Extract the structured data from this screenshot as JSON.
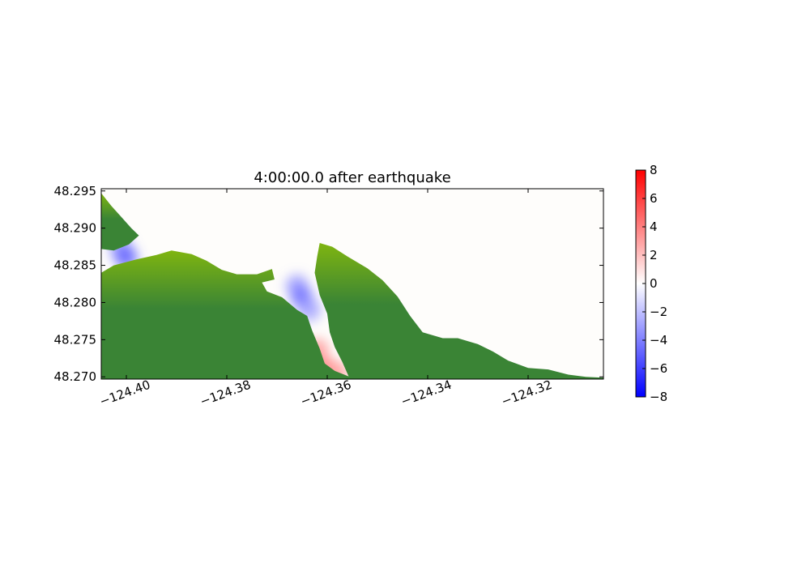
{
  "chart_data": {
    "type": "heatmap",
    "title": "4:00:00.0 after earthquake",
    "xlabel": "",
    "ylabel": "",
    "xlim": [
      -124.405,
      -124.305
    ],
    "ylim": [
      48.2697,
      48.2953
    ],
    "x_ticks": [
      -124.4,
      -124.38,
      -124.36,
      -124.34,
      -124.32
    ],
    "x_tick_labels": [
      "−124.40",
      "−124.38",
      "−124.36",
      "−124.34",
      "−124.32"
    ],
    "y_ticks": [
      48.295,
      48.29,
      48.285,
      48.28,
      48.275,
      48.27
    ],
    "y_tick_labels": [
      "48.295",
      "48.290",
      "48.285",
      "48.280",
      "48.275",
      "48.270"
    ],
    "grid": false,
    "colorbar": {
      "colormap": "bwr",
      "range": [
        -8,
        8
      ],
      "ticks": [
        8,
        6,
        4,
        2,
        0,
        -2,
        -4,
        -6,
        -8
      ],
      "tick_labels": [
        "8",
        "6",
        "4",
        "2",
        "0",
        "−2",
        "−4",
        "−6",
        "−8"
      ],
      "colors": {
        "high": "#ff0000",
        "mid": "#ffffff",
        "low": "#0000ff"
      }
    },
    "land": {
      "colors": {
        "low": "#3a8435",
        "high": "#7fb510"
      },
      "regions": [
        {
          "name": "west",
          "boundary": [
            [
              -124.405,
              48.2697
            ],
            [
              -124.405,
              48.284
            ],
            [
              -124.4025,
              48.285
            ],
            [
              -124.398,
              48.2858
            ],
            [
              -124.394,
              48.2864
            ],
            [
              -124.391,
              48.287
            ],
            [
              -124.387,
              48.2865
            ],
            [
              -124.384,
              48.2856
            ],
            [
              -124.381,
              48.2844
            ],
            [
              -124.378,
              48.2838
            ],
            [
              -124.374,
              48.2838
            ],
            [
              -124.371,
              48.2845
            ],
            [
              -124.3705,
              48.2831
            ],
            [
              -124.373,
              48.2827
            ],
            [
              -124.372,
              48.2815
            ],
            [
              -124.369,
              48.2807
            ],
            [
              -124.366,
              48.279
            ],
            [
              -124.364,
              48.2782
            ],
            [
              -124.363,
              48.2762
            ],
            [
              -124.3615,
              48.2738
            ],
            [
              -124.3605,
              48.2718
            ],
            [
              -124.3585,
              48.2708
            ],
            [
              -124.3555,
              48.27
            ],
            [
              -124.3555,
              48.2697
            ]
          ]
        },
        {
          "name": "north-tip",
          "boundary": [
            [
              -124.405,
              48.2947
            ],
            [
              -124.403,
              48.293
            ],
            [
              -124.401,
              48.2915
            ],
            [
              -124.399,
              48.29
            ],
            [
              -124.3975,
              48.289
            ],
            [
              -124.3995,
              48.2878
            ],
            [
              -124.4025,
              48.287
            ],
            [
              -124.405,
              48.2872
            ]
          ]
        },
        {
          "name": "east",
          "boundary": [
            [
              -124.3615,
              48.288
            ],
            [
              -124.359,
              48.2875
            ],
            [
              -124.356,
              48.2862
            ],
            [
              -124.352,
              48.2846
            ],
            [
              -124.349,
              48.283
            ],
            [
              -124.346,
              48.2808
            ],
            [
              -124.3435,
              48.2782
            ],
            [
              -124.341,
              48.276
            ],
            [
              -124.337,
              48.2752
            ],
            [
              -124.334,
              48.2752
            ],
            [
              -124.33,
              48.2744
            ],
            [
              -124.327,
              48.2734
            ],
            [
              -124.324,
              48.2722
            ],
            [
              -124.32,
              48.2712
            ],
            [
              -124.316,
              48.271
            ],
            [
              -124.312,
              48.2703
            ],
            [
              -124.3085,
              48.27
            ],
            [
              -124.305,
              48.2699
            ],
            [
              -124.305,
              48.2697
            ],
            [
              -124.3555,
              48.2697
            ],
            [
              -124.357,
              48.272
            ],
            [
              -124.3585,
              48.274
            ],
            [
              -124.3595,
              48.276
            ],
            [
              -124.36,
              48.2785
            ],
            [
              -124.3615,
              48.281
            ],
            [
              -124.3625,
              48.284
            ],
            [
              -124.362,
              48.2862
            ]
          ]
        }
      ]
    },
    "water_anomalies": [
      {
        "lon": -124.401,
        "lat": 48.2872,
        "value": -1.0
      },
      {
        "lon": -124.4,
        "lat": 48.286,
        "value": -1.3
      },
      {
        "lon": -124.366,
        "lat": 48.2822,
        "value": -0.9
      },
      {
        "lon": -124.365,
        "lat": 48.2806,
        "value": -1.2
      },
      {
        "lon": -124.3635,
        "lat": 48.279,
        "value": -0.8
      },
      {
        "lon": -124.362,
        "lat": 48.2736,
        "value": 0.9
      },
      {
        "lon": -124.3605,
        "lat": 48.2712,
        "value": 1.1
      },
      {
        "lon": -124.358,
        "lat": 48.2706,
        "value": 0.8
      }
    ]
  }
}
